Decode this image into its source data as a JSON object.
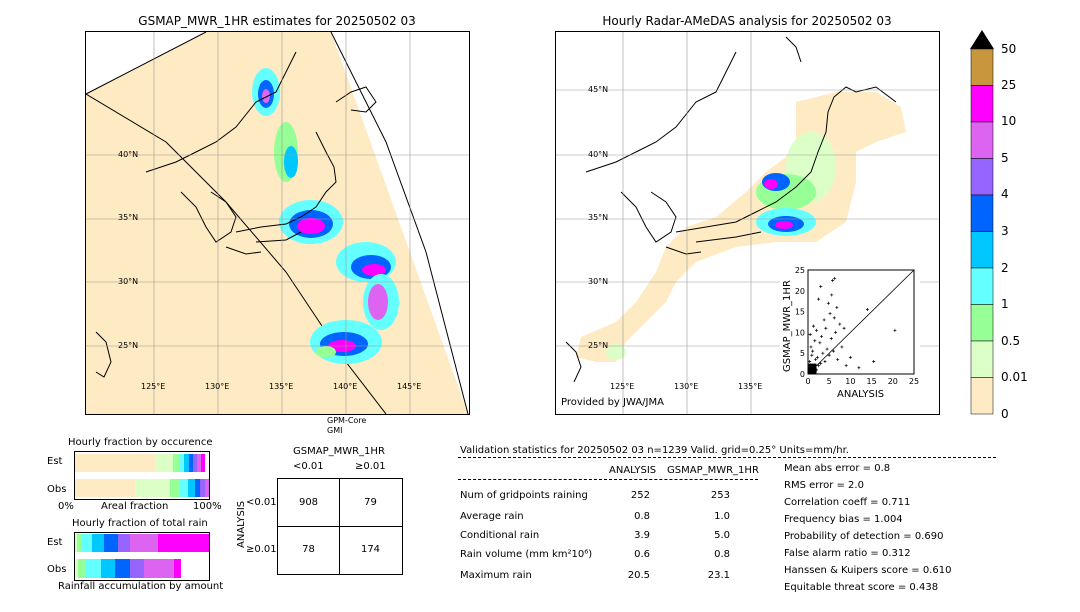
{
  "left_map": {
    "title": "GSMAP_MWR_1HR estimates for 20250502 03",
    "lat_labels": [
      "40°N",
      "35°N",
      "30°N",
      "25°N"
    ],
    "lon_labels": [
      "125°E",
      "130°E",
      "135°E",
      "140°E",
      "145°E"
    ],
    "sensor_label_1": "GPM-Core",
    "sensor_label_2": "GMI"
  },
  "right_map": {
    "title": "Hourly Radar-AMeDAS analysis for 20250502 03",
    "lat_labels": [
      "45°N",
      "40°N",
      "35°N",
      "30°N",
      "25°N"
    ],
    "lon_labels": [
      "125°E",
      "130°E",
      "135°E"
    ],
    "provider": "Provided by JWA/JMA"
  },
  "scatter": {
    "ylabel": "GSMAP_MWR_1HR",
    "xlabel": "ANALYSIS",
    "ticks": [
      "0",
      "5",
      "10",
      "15",
      "20",
      "25"
    ]
  },
  "colorbar": {
    "labels": [
      "50",
      "25",
      "10",
      "5",
      "4",
      "3",
      "2",
      "1",
      "0.5",
      "0.01",
      "0"
    ],
    "colors": [
      "#c8963c",
      "#ff00ff",
      "#dc64f0",
      "#9664ff",
      "#0064ff",
      "#00c8ff",
      "#64ffff",
      "#96ff96",
      "#dcffc8",
      "#ffebc3"
    ],
    "overflow_color": "#000000"
  },
  "fraction_occurrence": {
    "title": "Hourly fraction by occurence",
    "row_est": "Est",
    "row_obs": "Obs",
    "axis_left": "0%",
    "axis_mid": "Areal fraction",
    "axis_right": "100%"
  },
  "fraction_total": {
    "title": "Hourly fraction of total rain",
    "row_est": "Est",
    "row_obs": "Obs",
    "footer": "Rainfall accumulation by amount"
  },
  "contingency": {
    "title": "GSMAP_MWR_1HR",
    "col_lt": "<0.01",
    "col_ge": "≥0.01",
    "row_axis": "ANALYSIS",
    "row_lt": "<0.01",
    "row_ge": "≥0.01",
    "cells": [
      "908",
      "79",
      "78",
      "174"
    ]
  },
  "validation": {
    "header": "Validation statistics for 20250502 03  n=1239 Valid. grid=0.25° Units=mm/hr.",
    "col_analysis": "ANALYSIS",
    "col_gsmap": "GSMAP_MWR_1HR",
    "rows": [
      {
        "label": "Num of gridpoints raining",
        "analysis": "252",
        "gsmap": "253"
      },
      {
        "label": "Average rain",
        "analysis": "0.8",
        "gsmap": "1.0"
      },
      {
        "label": "Conditional rain",
        "analysis": "3.9",
        "gsmap": "5.0"
      },
      {
        "label": "Rain volume (mm km²10⁶)",
        "analysis": "0.6",
        "gsmap": "0.8"
      },
      {
        "label": "Maximum rain",
        "analysis": "20.5",
        "gsmap": "23.1"
      }
    ],
    "scores": [
      "Mean abs error =    0.8",
      "RMS error =    2.0",
      "Correlation coeff =  0.711",
      "Frequency bias =  1.004",
      "Probability of detection =  0.690",
      "False alarm ratio =  0.312",
      "Hanssen & Kuipers score =  0.610",
      "Equitable threat score =  0.438"
    ]
  },
  "chart_data": {
    "type": "scatter",
    "title": "",
    "xlabel": "ANALYSIS",
    "ylabel": "GSMAP_MWR_1HR",
    "xlim": [
      0,
      25
    ],
    "ylim": [
      0,
      25
    ],
    "points": [
      [
        0.3,
        0.5
      ],
      [
        0.5,
        1.2
      ],
      [
        0.8,
        0.4
      ],
      [
        1.0,
        2.0
      ],
      [
        1.2,
        1.5
      ],
      [
        0.4,
        3.0
      ],
      [
        0.6,
        2.2
      ],
      [
        1.5,
        0.8
      ],
      [
        2.0,
        1.0
      ],
      [
        1.8,
        3.5
      ],
      [
        2.5,
        2.0
      ],
      [
        0.9,
        4.5
      ],
      [
        1.1,
        5.5
      ],
      [
        0.7,
        6.5
      ],
      [
        2.2,
        4.0
      ],
      [
        3.0,
        2.5
      ],
      [
        3.5,
        5.0
      ],
      [
        2.8,
        7.5
      ],
      [
        1.6,
        8.0
      ],
      [
        4.0,
        3.0
      ],
      [
        4.5,
        6.0
      ],
      [
        5.0,
        4.5
      ],
      [
        3.2,
        9.0
      ],
      [
        2.0,
        10.5
      ],
      [
        6.0,
        5.5
      ],
      [
        5.5,
        8.5
      ],
      [
        4.2,
        11.0
      ],
      [
        6.5,
        10.0
      ],
      [
        7.0,
        3.5
      ],
      [
        8.0,
        6.5
      ],
      [
        3.8,
        13.0
      ],
      [
        5.2,
        14.5
      ],
      [
        6.2,
        13.5
      ],
      [
        4.8,
        17.0
      ],
      [
        5.6,
        19.0
      ],
      [
        6.8,
        16.0
      ],
      [
        3.0,
        21.0
      ],
      [
        5.8,
        22.5
      ],
      [
        6.3,
        23.0
      ],
      [
        2.5,
        18.0
      ],
      [
        9.0,
        2.0
      ],
      [
        10.0,
        4.0
      ],
      [
        12.0,
        1.5
      ],
      [
        14.0,
        15.5
      ],
      [
        15.5,
        3.0
      ],
      [
        20.5,
        10.5
      ],
      [
        1.3,
        11.5
      ],
      [
        0.5,
        9.5
      ],
      [
        7.5,
        12.0
      ],
      [
        8.5,
        11.0
      ]
    ]
  }
}
